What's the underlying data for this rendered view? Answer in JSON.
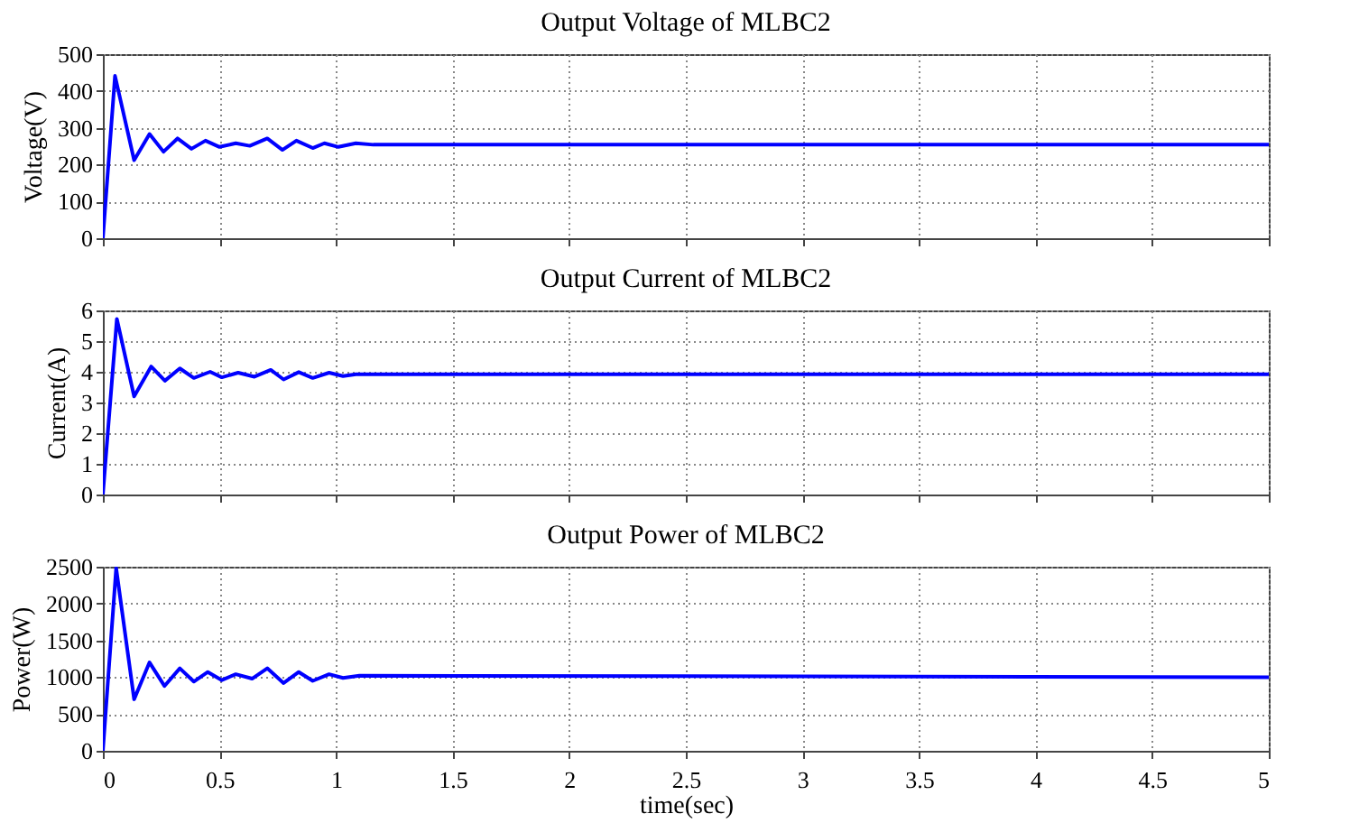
{
  "chart_data": [
    {
      "type": "line",
      "title": "Output Voltage of MLBC2",
      "ylabel": "Voltage(V)",
      "x": [
        0,
        0.052,
        0.134,
        0.2,
        0.26,
        0.32,
        0.38,
        0.44,
        0.5,
        0.57,
        0.63,
        0.705,
        0.77,
        0.83,
        0.9,
        0.95,
        1.01,
        1.085,
        1.16,
        5
      ],
      "series": [
        {
          "color": "#0000ff",
          "values": [
            0,
            441,
            212,
            283,
            235,
            271,
            243,
            265,
            248,
            258,
            251,
            271,
            240,
            265,
            245,
            258,
            248,
            258,
            254,
            254
          ]
        }
      ],
      "xlim": [
        0,
        5
      ],
      "xticks": [
        0,
        0.5,
        1,
        1.5,
        2,
        2.5,
        3,
        3.5,
        4,
        4.5,
        5
      ],
      "ylim": [
        0,
        500
      ],
      "yticks": [
        0,
        100,
        200,
        300,
        400,
        500
      ],
      "grid": true,
      "tick_labels": "y"
    },
    {
      "type": "line",
      "title": "Output Current of MLBC2",
      "ylabel": "Current(A)",
      "x": [
        0,
        0.06,
        0.134,
        0.207,
        0.266,
        0.33,
        0.39,
        0.46,
        0.51,
        0.58,
        0.65,
        0.72,
        0.775,
        0.84,
        0.9,
        0.97,
        1.03,
        1.085,
        5
      ],
      "series": [
        {
          "color": "#0000ff",
          "values": [
            0,
            5.72,
            3.2,
            4.17,
            3.71,
            4.11,
            3.8,
            4.0,
            3.82,
            3.97,
            3.84,
            4.06,
            3.75,
            3.99,
            3.8,
            3.97,
            3.86,
            3.92,
            3.92
          ]
        }
      ],
      "xlim": [
        0,
        5
      ],
      "xticks": [
        0,
        0.5,
        1,
        1.5,
        2,
        2.5,
        3,
        3.5,
        4,
        4.5,
        5
      ],
      "ylim": [
        0,
        6
      ],
      "yticks": [
        0,
        1,
        2,
        3,
        4,
        5,
        6
      ],
      "grid": true,
      "tick_labels": "y"
    },
    {
      "type": "line",
      "title": "Output Power of MLBC2",
      "ylabel": "Power(W)",
      "xlabel": "time(sec)",
      "x": [
        0,
        0.057,
        0.134,
        0.2,
        0.264,
        0.33,
        0.39,
        0.45,
        0.51,
        0.57,
        0.64,
        0.705,
        0.775,
        0.84,
        0.9,
        0.97,
        1.03,
        1.1,
        5
      ],
      "series": [
        {
          "color": "#0000ff",
          "values": [
            0,
            2480,
            700,
            1200,
            880,
            1120,
            940,
            1070,
            960,
            1040,
            980,
            1120,
            920,
            1070,
            950,
            1040,
            990,
            1020,
            1000
          ]
        }
      ],
      "xlim": [
        0,
        5
      ],
      "xticks": [
        0,
        0.5,
        1,
        1.5,
        2,
        2.5,
        3,
        3.5,
        4,
        4.5,
        5
      ],
      "ylim": [
        0,
        2500
      ],
      "yticks": [
        0,
        500,
        1000,
        1500,
        2000,
        2500
      ],
      "grid": true
    }
  ]
}
